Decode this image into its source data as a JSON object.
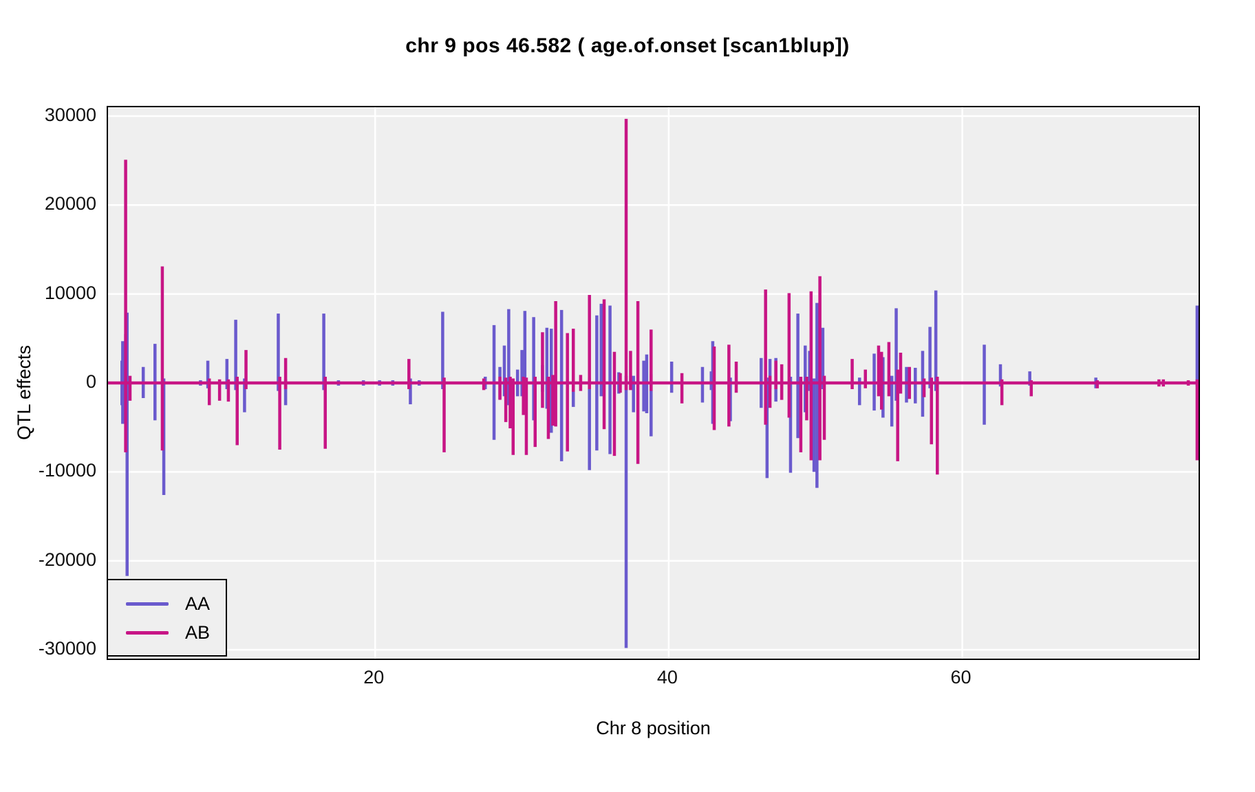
{
  "title": "chr 9 pos 46.582 ( age.of.onset  [scan1blup])",
  "panel": {
    "bg": "#EFEFEF",
    "grid_color": "#FFFFFF",
    "border_color": "#000000"
  },
  "legend": {
    "entries": [
      {
        "label": "AA",
        "color": "#6A5ACD"
      },
      {
        "label": "AB",
        "color": "#C71585"
      }
    ]
  },
  "chart_data": {
    "type": "line",
    "title": "chr 9 pos 46.582 ( age.of.onset  [scan1blup])",
    "xlabel": "Chr 8 position",
    "ylabel": "QTL effects",
    "xlim": [
      1.8,
      76.1
    ],
    "ylim": [
      -31000,
      31000
    ],
    "x_ticks": [
      20,
      40,
      60
    ],
    "y_ticks": [
      30000,
      20000,
      10000,
      0,
      -10000,
      -20000,
      -30000
    ],
    "grid": "white major gridlines on light-gray panel",
    "legend_position": "bottom-left inside panel",
    "baseline": 0,
    "note": "QTL effect spikes along Chr 8 position (cM); each spike spans [min,max] effect at that position, baseline at 0",
    "series": [
      {
        "name": "AA",
        "color": "#6A5ACD",
        "spikes": [
          [
            2.75,
            -2500,
            2500
          ],
          [
            2.8,
            -4600,
            4700
          ],
          [
            3.0,
            -3500,
            5500
          ],
          [
            3.1,
            -21700,
            7900
          ],
          [
            4.2,
            -1700,
            1800
          ],
          [
            5.0,
            -4200,
            4400
          ],
          [
            5.6,
            -12600,
            500
          ],
          [
            8.1,
            -300,
            300
          ],
          [
            8.6,
            -600,
            2500
          ],
          [
            9.9,
            -700,
            2700
          ],
          [
            10.5,
            -800,
            7100
          ],
          [
            11.1,
            -3300,
            500
          ],
          [
            13.4,
            -900,
            7800
          ],
          [
            13.9,
            -2500,
            400
          ],
          [
            16.5,
            -800,
            7800
          ],
          [
            17.5,
            -300,
            300
          ],
          [
            19.2,
            -300,
            300
          ],
          [
            20.3,
            -300,
            300
          ],
          [
            21.2,
            -300,
            300
          ],
          [
            22.4,
            -2400,
            500
          ],
          [
            23.0,
            -300,
            300
          ],
          [
            24.6,
            -700,
            8000
          ],
          [
            27.5,
            -700,
            700
          ],
          [
            28.1,
            -6400,
            6500
          ],
          [
            28.5,
            -1800,
            1800
          ],
          [
            28.8,
            -1500,
            4200
          ],
          [
            29.1,
            -2500,
            8300
          ],
          [
            29.7,
            -1500,
            1500
          ],
          [
            30.0,
            -1500,
            3700
          ],
          [
            30.2,
            -2000,
            8100
          ],
          [
            30.8,
            -4200,
            7400
          ],
          [
            31.4,
            -1000,
            2000
          ],
          [
            31.7,
            -2900,
            6200
          ],
          [
            32.0,
            -5600,
            6100
          ],
          [
            32.7,
            -8800,
            8200
          ],
          [
            33.5,
            -2700,
            1000
          ],
          [
            34.6,
            -9800,
            600
          ],
          [
            35.1,
            -7600,
            7600
          ],
          [
            35.4,
            -1500,
            8900
          ],
          [
            36.0,
            -8000,
            8700
          ],
          [
            36.6,
            -1200,
            1200
          ],
          [
            37.1,
            -29800,
            800
          ],
          [
            37.6,
            -3300,
            800
          ],
          [
            38.3,
            -3200,
            2500
          ],
          [
            38.5,
            -3400,
            3200
          ],
          [
            38.8,
            -6000,
            1000
          ],
          [
            40.2,
            -1100,
            2400
          ],
          [
            42.3,
            -2200,
            1800
          ],
          [
            42.9,
            -800,
            1300
          ],
          [
            43.0,
            -4600,
            4700
          ],
          [
            44.2,
            -4300,
            600
          ],
          [
            46.3,
            -2800,
            2800
          ],
          [
            46.7,
            -10700,
            600
          ],
          [
            46.9,
            -700,
            2700
          ],
          [
            47.3,
            -2100,
            2800
          ],
          [
            48.3,
            -10100,
            700
          ],
          [
            48.8,
            -6200,
            7800
          ],
          [
            49.3,
            -3300,
            4200
          ],
          [
            49.6,
            -900,
            3600
          ],
          [
            49.9,
            -10000,
            500
          ],
          [
            50.1,
            -11800,
            9000
          ],
          [
            50.5,
            -700,
            6200
          ],
          [
            53.0,
            -2500,
            600
          ],
          [
            54.0,
            -3100,
            3300
          ],
          [
            54.6,
            -3900,
            2900
          ],
          [
            55.2,
            -4900,
            800
          ],
          [
            55.5,
            -2000,
            8400
          ],
          [
            56.2,
            -2200,
            1800
          ],
          [
            56.8,
            -2300,
            1700
          ],
          [
            57.3,
            -3800,
            3600
          ],
          [
            57.8,
            -600,
            6300
          ],
          [
            58.2,
            -900,
            10400
          ],
          [
            61.5,
            -4700,
            4300
          ],
          [
            62.6,
            -400,
            2100
          ],
          [
            64.6,
            -300,
            1300
          ],
          [
            69.1,
            -600,
            600
          ],
          [
            76.0,
            -400,
            8700
          ]
        ]
      },
      {
        "name": "AB",
        "color": "#C71585",
        "spikes": [
          [
            3.0,
            -7800,
            25100
          ],
          [
            3.3,
            -2000,
            800
          ],
          [
            5.5,
            -7600,
            13100
          ],
          [
            8.7,
            -2500,
            500
          ],
          [
            9.4,
            -2000,
            400
          ],
          [
            10.0,
            -2100,
            400
          ],
          [
            10.6,
            -7000,
            700
          ],
          [
            11.2,
            -700,
            3700
          ],
          [
            13.5,
            -7500,
            700
          ],
          [
            13.9,
            -700,
            2800
          ],
          [
            16.6,
            -7400,
            700
          ],
          [
            22.3,
            -700,
            2700
          ],
          [
            24.7,
            -7800,
            600
          ],
          [
            27.4,
            -800,
            500
          ],
          [
            28.5,
            -1900,
            700
          ],
          [
            28.9,
            -4400,
            600
          ],
          [
            29.2,
            -5100,
            700
          ],
          [
            29.4,
            -8100,
            500
          ],
          [
            30.1,
            -3600,
            700
          ],
          [
            30.3,
            -8100,
            600
          ],
          [
            30.9,
            -7200,
            700
          ],
          [
            31.4,
            -2800,
            5700
          ],
          [
            31.8,
            -6300,
            700
          ],
          [
            32.1,
            -4800,
            900
          ],
          [
            32.3,
            -4900,
            9200
          ],
          [
            33.1,
            -7700,
            5600
          ],
          [
            33.5,
            -1000,
            6100
          ],
          [
            34.0,
            -900,
            900
          ],
          [
            34.6,
            -700,
            9900
          ],
          [
            35.6,
            -5200,
            9400
          ],
          [
            36.3,
            -8200,
            3500
          ],
          [
            36.7,
            -1100,
            1100
          ],
          [
            37.1,
            -800,
            29700
          ],
          [
            37.4,
            -800,
            3600
          ],
          [
            37.9,
            -9100,
            9200
          ],
          [
            38.8,
            -900,
            6000
          ],
          [
            40.9,
            -2300,
            1100
          ],
          [
            43.1,
            -5300,
            4100
          ],
          [
            44.1,
            -4900,
            4300
          ],
          [
            44.6,
            -1100,
            2400
          ],
          [
            46.6,
            -4700,
            10500
          ],
          [
            46.9,
            -2800,
            800
          ],
          [
            47.3,
            -700,
            2500
          ],
          [
            47.7,
            -1900,
            2100
          ],
          [
            48.2,
            -3900,
            10100
          ],
          [
            49.0,
            -7800,
            700
          ],
          [
            49.4,
            -4200,
            700
          ],
          [
            49.7,
            -8700,
            10300
          ],
          [
            50.3,
            -8700,
            12000
          ],
          [
            50.6,
            -6400,
            800
          ],
          [
            52.5,
            -700,
            2700
          ],
          [
            53.4,
            -600,
            1500
          ],
          [
            54.3,
            -1500,
            4200
          ],
          [
            54.5,
            -3000,
            3500
          ],
          [
            55.0,
            -1500,
            4600
          ],
          [
            55.6,
            -8800,
            1500
          ],
          [
            55.8,
            -1200,
            3400
          ],
          [
            56.4,
            -1800,
            1800
          ],
          [
            57.4,
            -1600,
            500
          ],
          [
            57.9,
            -6900,
            600
          ],
          [
            58.3,
            -10300,
            700
          ],
          [
            62.7,
            -2500,
            400
          ],
          [
            64.7,
            -1500,
            300
          ],
          [
            69.2,
            -600,
            300
          ],
          [
            73.4,
            -400,
            400
          ],
          [
            73.7,
            -400,
            400
          ],
          [
            75.4,
            -300,
            300
          ],
          [
            76.0,
            -8700,
            400
          ]
        ]
      }
    ]
  }
}
